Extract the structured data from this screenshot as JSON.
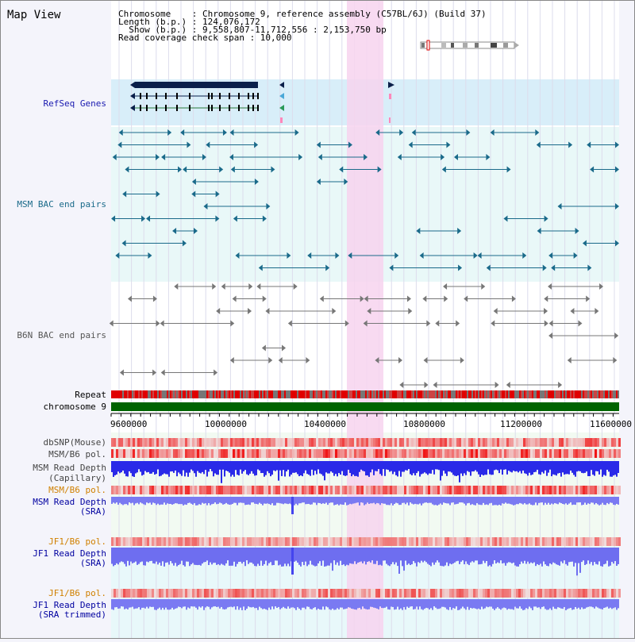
{
  "title": "Map View",
  "info": [
    "Chromosome    : Chromosome 9, reference assembly (C57BL/6J) (Build 37)",
    "Length (b.p.) : 124,076,172",
    "  Show (b.p.) : 9,558,807-11,712,556 : 2,153,750 bp",
    "Read coverage check span : 10,000"
  ],
  "tracks": {
    "refseq": "RefSeq Genes",
    "msm_bac": "MSM BAC end pairs",
    "b6n_bac": "B6N BAC end pairs",
    "repeat": "Repeat",
    "chromosome": "chromosome 9",
    "dbsnp": "dbSNP(Mouse)",
    "msm_b6_pol_1": "MSM/B6 pol.",
    "msm_depth_cap_1": "MSM Read Depth",
    "msm_depth_cap_2": "(Capillary)",
    "msm_b6_pol_2": "MSM/B6 pol.",
    "msm_depth_sra_1": "MSM Read Depth",
    "msm_depth_sra_2": "(SRA)",
    "jf1_b6_pol_1": "JF1/B6 pol.",
    "jf1_depth_sra_1": "JF1 Read Depth",
    "jf1_depth_sra_2": "(SRA)",
    "jf1_b6_pol_2": "JF1/B6 pol.",
    "jf1_depth_trim_1": "JF1 Read Depth",
    "jf1_depth_trim_2": "(SRA trimmed)"
  },
  "axis_ticks": [
    "9600000",
    "10000000",
    "10400000",
    "10800000",
    "11200000",
    "11600000"
  ],
  "colors": {
    "refseq_label": "#1a1ab0",
    "msm_label": "#1a6a8a",
    "b6n_label": "#555555",
    "pol_label": "#d08000",
    "depth_label": "#0000a0",
    "highlight": "#f7d3ee",
    "chromosome_bar": "#006400",
    "depth_blue": "#2a2ae8",
    "depth_light": "#6e6ef0"
  }
}
